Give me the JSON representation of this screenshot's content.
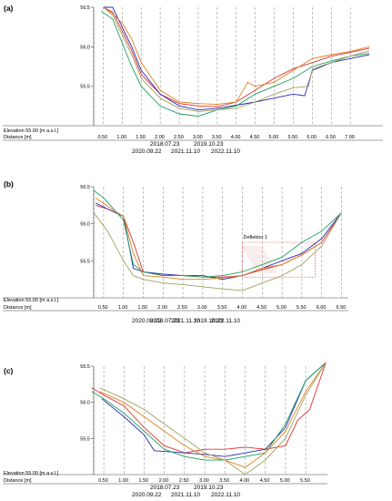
{
  "chart_data": [
    {
      "type": "line",
      "panel_label": "(a)",
      "elevation_label": "Elevation 55.00 [m a.s.l.]",
      "distance_label": "Distance [m]",
      "ylim": [
        55.0,
        56.5
      ],
      "y_ticks": [
        "55.5",
        "56.0",
        "56.5"
      ],
      "x_ticks": [
        "0.50",
        "1.00",
        "1.50",
        "2.00",
        "2.50",
        "3.00",
        "3.50",
        "4.00",
        "4.50",
        "5.00",
        "5.50",
        "6.00",
        "6.50",
        "7.00"
      ],
      "annotation": null,
      "series": [
        {
          "name": "2018.07.23",
          "color": "#e03030",
          "x": [
            0.5,
            0.75,
            1.0,
            1.25,
            1.5,
            2.0,
            2.5,
            3.0,
            3.5,
            4.0,
            4.5,
            5.0,
            5.5,
            6.0,
            6.5,
            7.0,
            7.5
          ],
          "y": [
            56.5,
            56.44,
            56.2,
            55.95,
            55.65,
            55.4,
            55.28,
            55.25,
            55.24,
            55.3,
            55.45,
            55.6,
            55.72,
            55.8,
            55.88,
            55.93,
            55.98
          ]
        },
        {
          "name": "2019.10.23",
          "color": "#2a2ab0",
          "x": [
            0.5,
            0.75,
            1.0,
            1.25,
            1.5,
            2.0,
            2.5,
            3.0,
            3.5,
            4.0,
            4.5,
            5.0,
            5.5,
            5.8,
            6.0,
            6.5,
            7.0,
            7.5
          ],
          "y": [
            56.5,
            56.5,
            56.25,
            56.0,
            55.7,
            55.4,
            55.25,
            55.2,
            55.22,
            55.26,
            55.3,
            55.35,
            55.4,
            55.38,
            55.7,
            55.8,
            55.85,
            55.9
          ]
        },
        {
          "name": "2020.09.22",
          "color": "#1aa060",
          "x": [
            0.45,
            0.75,
            1.0,
            1.25,
            1.5,
            2.0,
            2.5,
            3.0,
            3.5,
            4.0,
            4.5,
            5.0,
            5.5,
            6.0,
            6.5,
            7.0,
            7.5
          ],
          "y": [
            56.45,
            56.35,
            56.05,
            55.75,
            55.5,
            55.25,
            55.15,
            55.12,
            55.2,
            55.25,
            55.4,
            55.5,
            55.6,
            55.75,
            55.82,
            55.88,
            55.92
          ]
        },
        {
          "name": "2021.11.10",
          "color": "#e08020",
          "x": [
            0.5,
            0.75,
            1.0,
            1.25,
            1.5,
            2.0,
            2.5,
            3.0,
            3.5,
            4.0,
            4.3,
            4.5,
            5.0,
            5.5,
            6.0,
            6.5,
            7.0,
            7.5
          ],
          "y": [
            56.5,
            56.42,
            56.3,
            56.1,
            55.8,
            55.45,
            55.3,
            55.28,
            55.27,
            55.3,
            55.55,
            55.5,
            55.55,
            55.7,
            55.85,
            55.9,
            55.94,
            56.0
          ]
        },
        {
          "name": "2022.11.10",
          "color": "#a0a060",
          "x": [
            0.5,
            0.75,
            1.0,
            1.25,
            1.5,
            2.0,
            2.5,
            3.0,
            3.5,
            4.0,
            4.5,
            5.0,
            5.5,
            5.9,
            6.0,
            6.5,
            7.0,
            7.5
          ],
          "y": [
            56.5,
            56.4,
            56.15,
            55.9,
            55.6,
            55.35,
            55.22,
            55.18,
            55.2,
            55.22,
            55.3,
            55.4,
            55.48,
            55.5,
            55.72,
            55.8,
            55.88,
            55.95
          ]
        }
      ]
    },
    {
      "type": "line",
      "panel_label": "(b)",
      "elevation_label": "Elevation 55.00 [m a.s.l.]",
      "distance_label": "Distance [m]",
      "ylim": [
        55.0,
        56.5
      ],
      "y_ticks": [
        "55.5",
        "56.0",
        "56.5"
      ],
      "x_ticks": [
        "0.50",
        "1.00",
        "1.50",
        "2.00",
        "2.50",
        "3.00",
        "3.50",
        "4.00",
        "4.50",
        "5.00",
        "5.50",
        "6.00",
        "6.50"
      ],
      "annotation": "Deflektor 1",
      "series": [
        {
          "name": "2018.07.23",
          "color": "#e03030",
          "x": [
            0.3,
            0.6,
            1.0,
            1.25,
            1.5,
            2.0,
            2.5,
            3.0,
            3.5,
            4.0,
            4.5,
            5.0,
            5.5,
            6.0,
            6.5
          ],
          "y": [
            56.25,
            56.2,
            56.1,
            55.75,
            55.35,
            55.3,
            55.3,
            55.28,
            55.28,
            55.3,
            55.38,
            55.45,
            55.58,
            55.75,
            56.15
          ]
        },
        {
          "name": "2019.10.23",
          "color": "#2a2ab0",
          "x": [
            0.3,
            0.6,
            1.0,
            1.25,
            1.5,
            2.0,
            2.5,
            3.0,
            3.5,
            4.0,
            4.5,
            5.0,
            5.5,
            6.0,
            6.5
          ],
          "y": [
            56.28,
            56.2,
            56.1,
            55.4,
            55.35,
            55.32,
            55.3,
            55.3,
            55.25,
            55.3,
            55.4,
            55.5,
            55.6,
            55.8,
            56.15
          ]
        },
        {
          "name": "2020.09.22",
          "color": "#1aa060",
          "x": [
            0.25,
            0.5,
            1.0,
            1.25,
            1.5,
            2.0,
            2.5,
            3.0,
            3.5,
            4.0,
            4.5,
            5.0,
            5.5,
            6.0,
            6.5
          ],
          "y": [
            56.45,
            56.35,
            56.05,
            55.45,
            55.35,
            55.3,
            55.3,
            55.28,
            55.3,
            55.35,
            55.45,
            55.55,
            55.75,
            55.9,
            56.15
          ]
        },
        {
          "name": "2021.11.10",
          "color": "#e08020",
          "x": [
            0.3,
            0.7,
            1.0,
            1.25,
            1.5,
            2.0,
            2.5,
            3.0,
            3.5,
            4.0,
            4.5,
            5.0,
            5.5,
            6.0
          ],
          "y": [
            56.35,
            56.2,
            56.1,
            55.6,
            55.3,
            55.28,
            55.25,
            55.25,
            55.27,
            55.3,
            55.4,
            55.45,
            55.58,
            55.75
          ]
        },
        {
          "name": "2022.11.10",
          "color": "#a0a060",
          "x": [
            0.25,
            0.6,
            1.0,
            1.25,
            1.5,
            2.0,
            2.5,
            3.0,
            3.5,
            4.0,
            4.5,
            5.0,
            5.5,
            6.0,
            6.5
          ],
          "y": [
            56.15,
            55.9,
            55.5,
            55.3,
            55.25,
            55.2,
            55.18,
            55.15,
            55.12,
            55.1,
            55.2,
            55.3,
            55.45,
            55.7,
            56.15
          ]
        }
      ]
    },
    {
      "type": "line",
      "panel_label": "(c)",
      "elevation_label": "Elevation 55.00 [m a.s.l.]",
      "distance_label": "Distance [m]",
      "ylim": [
        55.0,
        56.5
      ],
      "y_ticks": [
        "55.5",
        "56.0",
        "56.5"
      ],
      "x_ticks": [
        "0.50",
        "1.00",
        "1.50",
        "2.00",
        "2.50",
        "3.00",
        "3.50",
        "4.00",
        "4.50",
        "5.00",
        "5.50"
      ],
      "annotation": null,
      "series": [
        {
          "name": "2018.07.23",
          "color": "#e03030",
          "x": [
            0.2,
            0.5,
            1.0,
            1.5,
            2.0,
            2.5,
            3.0,
            3.5,
            4.0,
            4.5,
            5.0,
            5.3,
            5.6,
            6.0
          ],
          "y": [
            56.2,
            56.1,
            55.95,
            55.65,
            55.4,
            55.3,
            55.35,
            55.35,
            55.38,
            55.35,
            55.4,
            55.75,
            55.9,
            56.55
          ]
        },
        {
          "name": "2019.10.23",
          "color": "#2a2ab0",
          "x": [
            0.45,
            1.0,
            1.5,
            1.75,
            2.0,
            2.5,
            3.0,
            3.5,
            4.0,
            4.5,
            5.0,
            5.5,
            6.0
          ],
          "y": [
            56.05,
            55.8,
            55.55,
            55.33,
            55.32,
            55.3,
            55.28,
            55.25,
            55.3,
            55.35,
            55.65,
            56.3,
            56.55
          ]
        },
        {
          "name": "2020.09.22",
          "color": "#1aa060",
          "x": [
            0.2,
            0.5,
            1.0,
            1.5,
            2.0,
            2.5,
            3.0,
            3.5,
            4.0,
            4.5,
            5.0,
            5.5,
            6.0
          ],
          "y": [
            56.15,
            56.05,
            55.85,
            55.6,
            55.35,
            55.25,
            55.2,
            55.2,
            55.25,
            55.3,
            55.7,
            56.3,
            56.55
          ]
        },
        {
          "name": "2021.11.10",
          "color": "#e08020",
          "x": [
            0.4,
            1.0,
            1.5,
            2.0,
            2.5,
            3.0,
            3.5,
            4.0,
            4.5,
            5.0,
            5.5,
            6.0
          ],
          "y": [
            56.15,
            56.0,
            55.8,
            55.6,
            55.4,
            55.25,
            55.2,
            55.1,
            55.3,
            55.6,
            56.15,
            56.55
          ]
        },
        {
          "name": "2022.11.10",
          "color": "#a0a060",
          "x": [
            0.4,
            1.0,
            1.5,
            2.0,
            2.5,
            3.0,
            3.5,
            4.0,
            4.5,
            5.0,
            5.5,
            6.0
          ],
          "y": [
            56.2,
            56.05,
            55.9,
            55.7,
            55.5,
            55.3,
            55.2,
            55.0,
            55.2,
            55.5,
            56.1,
            56.55
          ]
        }
      ]
    }
  ]
}
